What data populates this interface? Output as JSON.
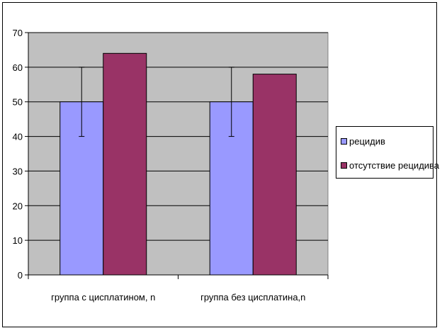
{
  "chart_data": {
    "type": "bar",
    "categories": [
      "группа с цисплатином, n",
      "группа без цисплатина,n"
    ],
    "series": [
      {
        "name": "рецидив",
        "values": [
          50,
          50
        ],
        "error_low": [
          40,
          40
        ],
        "error_high": [
          60,
          60
        ],
        "color": "#9999ff"
      },
      {
        "name": "отсутствие рецидива",
        "values": [
          64,
          58
        ],
        "color": "#993366"
      }
    ],
    "ylim": [
      0,
      70
    ],
    "yticks": [
      0,
      10,
      20,
      30,
      40,
      50,
      60,
      70
    ],
    "title": "",
    "xlabel": "",
    "ylabel": "",
    "grid": true,
    "plot_background": "#c0c0c0",
    "legend_position": "right"
  }
}
